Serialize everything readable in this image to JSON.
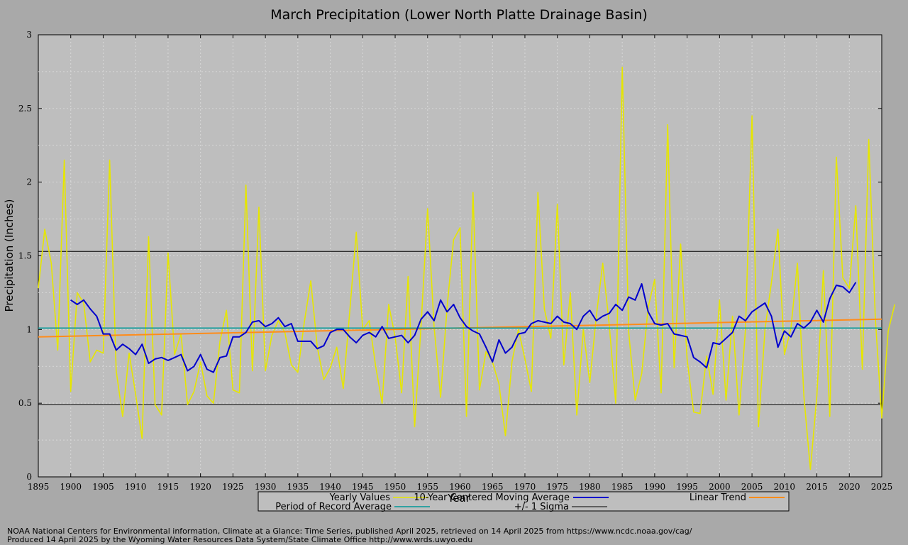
{
  "chart_data": {
    "type": "line",
    "title": "March Precipitation (Lower North Platte Drainage Basin)",
    "xlabel": "Year",
    "ylabel": "Precipitation (Inches)",
    "xlim": [
      1895,
      2025
    ],
    "ylim": [
      0,
      3
    ],
    "x_ticks": [
      "1895",
      "1900",
      "1905",
      "1910",
      "1915",
      "1920",
      "1925",
      "1930",
      "1935",
      "1940",
      "1945",
      "1950",
      "1955",
      "1960",
      "1965",
      "1970",
      "1975",
      "1980",
      "1985",
      "1990",
      "1995",
      "2000",
      "2005",
      "2010",
      "2015",
      "2020",
      "2025"
    ],
    "y_ticks": [
      "0",
      "0.5",
      "1",
      "1.5",
      "2",
      "2.5",
      "3"
    ],
    "grid": true,
    "legend_position": "bottom",
    "series": [
      {
        "name": "Yearly Values",
        "color": "#e6e600",
        "x_start": 1895,
        "values": [
          1.28,
          1.68,
          1.45,
          0.86,
          2.15,
          0.58,
          1.25,
          1.18,
          0.78,
          0.86,
          0.84,
          2.15,
          0.72,
          0.41,
          0.84,
          0.56,
          0.26,
          1.63,
          0.49,
          0.42,
          1.52,
          0.83,
          0.97,
          0.49,
          0.58,
          0.78,
          0.55,
          0.5,
          0.92,
          1.13,
          0.59,
          0.57,
          1.98,
          0.72,
          1.83,
          0.72,
          0.96,
          1.06,
          0.98,
          0.76,
          0.71,
          1.05,
          1.33,
          0.88,
          0.66,
          0.74,
          0.88,
          0.6,
          1.12,
          1.66,
          1.0,
          1.06,
          0.75,
          0.5,
          1.17,
          0.95,
          0.57,
          1.36,
          0.34,
          1.03,
          1.82,
          1.02,
          0.54,
          1.15,
          1.61,
          1.69,
          0.41,
          1.93,
          0.59,
          0.85,
          0.78,
          0.63,
          0.28,
          0.78,
          1.0,
          0.8,
          0.58,
          1.93,
          1.14,
          0.94,
          1.85,
          0.76,
          1.25,
          0.42,
          1.0,
          0.64,
          1.09,
          1.45,
          1.03,
          0.5,
          2.78,
          0.98,
          0.52,
          0.7,
          1.15,
          1.34,
          0.57,
          2.39,
          0.74,
          1.58,
          0.8,
          0.44,
          0.43,
          0.82,
          0.56,
          1.2,
          0.52,
          1.09,
          0.42,
          1.0,
          2.45,
          0.34,
          1.0,
          1.32,
          1.68,
          0.83,
          1.01,
          1.45,
          0.55,
          0.05,
          0.55,
          1.4,
          0.41,
          2.17,
          1.35,
          1.28,
          1.84,
          0.73,
          2.29,
          1.08,
          0.4,
          0.99,
          1.17
        ]
      },
      {
        "name": "10-Year Centered Moving Average",
        "color": "#0000cc",
        "x_start": 1900,
        "values": [
          1.2,
          1.17,
          1.2,
          1.14,
          1.09,
          0.97,
          0.97,
          0.86,
          0.9,
          0.87,
          0.83,
          0.9,
          0.77,
          0.8,
          0.81,
          0.79,
          0.81,
          0.83,
          0.72,
          0.75,
          0.83,
          0.73,
          0.71,
          0.81,
          0.82,
          0.95,
          0.95,
          0.98,
          1.05,
          1.06,
          1.02,
          1.04,
          1.08,
          1.02,
          1.04,
          0.92,
          0.92,
          0.92,
          0.87,
          0.89,
          0.98,
          1.0,
          1.0,
          0.95,
          0.91,
          0.96,
          0.98,
          0.95,
          1.02,
          0.94,
          0.95,
          0.96,
          0.91,
          0.96,
          1.07,
          1.12,
          1.06,
          1.2,
          1.12,
          1.17,
          1.08,
          1.02,
          0.99,
          0.97,
          0.88,
          0.78,
          0.93,
          0.84,
          0.88,
          0.97,
          0.98,
          1.04,
          1.06,
          1.05,
          1.04,
          1.09,
          1.05,
          1.04,
          1.0,
          1.09,
          1.13,
          1.06,
          1.09,
          1.11,
          1.17,
          1.13,
          1.22,
          1.2,
          1.31,
          1.12,
          1.04,
          1.03,
          1.04,
          0.97,
          0.96,
          0.95,
          0.81,
          0.78,
          0.74,
          0.91,
          0.9,
          0.94,
          0.98,
          1.09,
          1.06,
          1.12,
          1.15,
          1.18,
          1.09,
          0.88,
          0.99,
          0.95,
          1.04,
          1.01,
          1.05,
          1.13,
          1.05,
          1.21,
          1.3,
          1.29,
          1.25,
          1.32
        ]
      },
      {
        "name": "Linear Trend",
        "color": "#ff8c1a",
        "x": [
          1895,
          2025
        ],
        "values": [
          0.95,
          1.07
        ]
      },
      {
        "name": "Period of Record Average",
        "color": "#009999",
        "value": 1.01
      },
      {
        "name": "+/- 1 Sigma",
        "color": "#000000",
        "values": [
          1.53,
          0.49
        ]
      }
    ]
  },
  "footer": {
    "line1": "NOAA National Centers for Environmental information, Climate at a Glance: Time Series, published April 2025, retrieved on 14 April 2025 from https://www.ncdc.noaa.gov/cag/",
    "line2": "Produced 14 April 2025 by the Wyoming Water Resources Data System/State Climate Office http://www.wrds.uwyo.edu"
  }
}
